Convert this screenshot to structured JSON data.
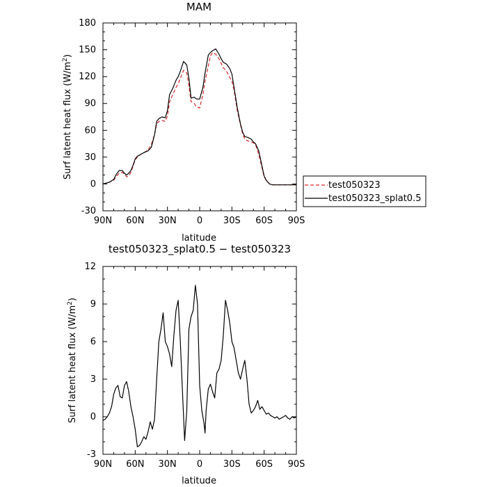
{
  "chart_data": [
    {
      "type": "line",
      "title": "MAM",
      "xlabel": "latitude",
      "ylabel": "Surf latent heat flux (W/m",
      "ylabel_sup": "2",
      "ylabel_end": ")",
      "xlim": [
        90,
        -90
      ],
      "ylim": [
        -30,
        180
      ],
      "xticks": [
        90,
        60,
        30,
        0,
        -30,
        -60,
        -90
      ],
      "xtick_labels": [
        "90N",
        "60N",
        "30N",
        "0",
        "30S",
        "60S",
        "90S"
      ],
      "yticks": [
        -30,
        0,
        30,
        60,
        90,
        120,
        150,
        180
      ],
      "ytick_labels": [
        "-30",
        "0",
        "30",
        "60",
        "90",
        "120",
        "150",
        "180"
      ],
      "legend_position": "right",
      "series": [
        {
          "name": "test050323",
          "color": "#d62728",
          "dash": "dashed",
          "x": [
            90,
            84,
            80,
            78,
            75,
            72,
            70,
            68,
            66,
            64,
            62,
            60,
            58,
            55,
            52,
            48,
            45,
            42,
            40,
            38,
            35,
            32,
            30,
            28,
            25,
            22,
            20,
            18,
            15,
            12,
            10,
            8,
            5,
            3,
            0,
            -3,
            -5,
            -8,
            -10,
            -12,
            -15,
            -18,
            -20,
            -22,
            -25,
            -28,
            -30,
            -32,
            -35,
            -38,
            -40,
            -42,
            -45,
            -48,
            -50,
            -52,
            -55,
            -58,
            -60,
            -62,
            -65,
            -68,
            -70,
            -72,
            -75,
            -78,
            -80,
            -82,
            -85,
            -88,
            -90
          ],
          "y": [
            0,
            2,
            4,
            8,
            12,
            13,
            11,
            8,
            9,
            13,
            20,
            27,
            30,
            33,
            35,
            38,
            44,
            55,
            67,
            70,
            71,
            70,
            76,
            92,
            100,
            108,
            112,
            118,
            127,
            124,
            110,
            92,
            90,
            86,
            85,
            100,
            115,
            132,
            143,
            147,
            145,
            140,
            135,
            130,
            126,
            119,
            115,
            105,
            82,
            66,
            56,
            50,
            48,
            47,
            46,
            44,
            33,
            18,
            8,
            4,
            0,
            -1,
            -1,
            -1,
            -1,
            -1,
            -1,
            -1,
            -1,
            -1,
            -1
          ]
        },
        {
          "name": "test050323_splat0.5",
          "color": "#000000",
          "dash": "solid",
          "x": [
            90,
            84,
            80,
            78,
            75,
            72,
            70,
            68,
            66,
            64,
            62,
            60,
            58,
            55,
            52,
            48,
            45,
            42,
            40,
            38,
            35,
            32,
            30,
            28,
            25,
            22,
            20,
            18,
            15,
            12,
            10,
            8,
            5,
            3,
            0,
            -3,
            -5,
            -8,
            -10,
            -12,
            -15,
            -18,
            -20,
            -22,
            -25,
            -28,
            -30,
            -32,
            -35,
            -38,
            -40,
            -42,
            -45,
            -48,
            -50,
            -52,
            -55,
            -58,
            -60,
            -62,
            -65,
            -68,
            -70,
            -72,
            -75,
            -78,
            -80,
            -82,
            -85,
            -88,
            -90
          ],
          "y": [
            0,
            2,
            5,
            10,
            15,
            15,
            12,
            10,
            12,
            15,
            21,
            28,
            31,
            33,
            35,
            37,
            41,
            55,
            70,
            73,
            75,
            74,
            82,
            100,
            107,
            116,
            120,
            126,
            137,
            133,
            118,
            96,
            97,
            95,
            95,
            108,
            124,
            144,
            147,
            149,
            151,
            145,
            140,
            136,
            134,
            129,
            123,
            108,
            85,
            67,
            58,
            53,
            52,
            50,
            47,
            45,
            37,
            20,
            9,
            4,
            0,
            -1,
            -1,
            -1,
            -1,
            -1,
            -1,
            -1,
            -1,
            -1,
            -1
          ]
        }
      ]
    },
    {
      "type": "line",
      "title": "test050323_splat0.5 − test050323",
      "xlabel": "latitude",
      "ylabel": "Surf latent heat flux (W/m",
      "ylabel_sup": "2",
      "ylabel_end": ")",
      "xlim": [
        90,
        -90
      ],
      "ylim": [
        -3,
        12
      ],
      "xticks": [
        90,
        60,
        30,
        0,
        -30,
        -60,
        -90
      ],
      "xtick_labels": [
        "90N",
        "60N",
        "30N",
        "0",
        "30S",
        "60S",
        "90S"
      ],
      "yticks": [
        -3,
        0,
        3,
        6,
        9,
        12
      ],
      "ytick_labels": [
        "-3",
        "0",
        "3",
        "6",
        "9",
        "12"
      ],
      "series": [
        {
          "color": "#000000",
          "dash": "solid",
          "x": [
            90,
            88,
            86,
            84,
            82,
            80,
            78,
            76,
            74,
            72,
            70,
            68,
            66,
            64,
            62,
            60,
            58,
            56,
            54,
            52,
            50,
            48,
            46,
            44,
            42,
            40,
            38,
            36,
            34,
            32,
            30,
            28,
            26,
            24,
            22,
            20,
            18,
            16,
            14,
            12,
            10,
            8,
            6,
            4,
            2,
            0,
            -2,
            -4,
            -5,
            -6,
            -8,
            -10,
            -12,
            -14,
            -16,
            -18,
            -20,
            -22,
            -24,
            -26,
            -28,
            -30,
            -32,
            -34,
            -36,
            -38,
            -40,
            -42,
            -44,
            -46,
            -48,
            -50,
            -52,
            -54,
            -56,
            -58,
            -60,
            -62,
            -64,
            -66,
            -68,
            -70,
            -72,
            -74,
            -76,
            -78,
            -80,
            -82,
            -84,
            -86,
            -88,
            -90
          ],
          "y": [
            -0.3,
            -0.2,
            0,
            0.3,
            0.8,
            1.8,
            2.3,
            2.5,
            1.6,
            1.5,
            2.5,
            2.8,
            2.0,
            0.8,
            0.0,
            -1.0,
            -2.4,
            -2.3,
            -2.0,
            -1.6,
            -1.8,
            -1.2,
            -0.4,
            -1.0,
            -0.2,
            3.0,
            6.0,
            7.0,
            8.3,
            6.0,
            5.6,
            5.0,
            4.0,
            6.5,
            8.5,
            9.3,
            6.0,
            2.0,
            -1.9,
            0.5,
            7.0,
            8.0,
            8.5,
            10.5,
            9.0,
            2.5,
            0.5,
            -0.5,
            -1.3,
            0.5,
            2.2,
            2.6,
            2.0,
            1.5,
            3.5,
            3.8,
            4.5,
            6.5,
            9.3,
            8.5,
            7.5,
            6.0,
            5.5,
            4.5,
            3.5,
            3.0,
            3.8,
            4.5,
            3.0,
            1.0,
            0.3,
            0.5,
            0.8,
            1.3,
            0.6,
            0.8,
            0.5,
            0.2,
            0.3,
            0.1,
            0.0,
            -0.1,
            0.0,
            -0.2,
            -0.1,
            0.0,
            0.1,
            -0.1,
            -0.2,
            0.0,
            -0.1,
            0.0
          ]
        }
      ]
    }
  ]
}
